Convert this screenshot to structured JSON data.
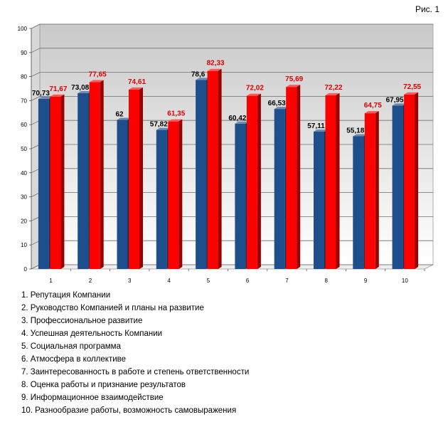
{
  "figure_label": "Рис. 1",
  "chart_data": {
    "type": "bar",
    "categories": [
      "1",
      "2",
      "3",
      "4",
      "5",
      "6",
      "7",
      "8",
      "9",
      "10"
    ],
    "series": [
      {
        "values": [
          70.73,
          73.08,
          62,
          57.82,
          78.6,
          60.42,
          66.53,
          57.11,
          55.18,
          67.95
        ],
        "labels": [
          "70,73",
          "73,08",
          "62",
          "57,82",
          "78,6",
          "60,42",
          "66,53",
          "57,11",
          "55,18",
          "67,95"
        ],
        "color": "#1f4e8c"
      },
      {
        "values": [
          71.67,
          77.65,
          74.61,
          61.35,
          82.33,
          72.02,
          75.69,
          72.22,
          64.75,
          72.55
        ],
        "labels": [
          "71,67",
          "77,65",
          "74,61",
          "61,35",
          "82,33",
          "72,02",
          "75,69",
          "72,22",
          "64,75",
          "72,55"
        ],
        "color": "#ff0000"
      }
    ],
    "y_ticks": [
      "0",
      "10",
      "20",
      "30",
      "40",
      "50",
      "60",
      "70",
      "80",
      "90",
      "100"
    ],
    "ylim": [
      0,
      100
    ],
    "grid": true,
    "legend": [
      "1. Репутация Компании",
      "2. Руководство Компанией и планы на развитие",
      "3. Профессиональное развитие",
      "4. Успешная деятельность Компании",
      "5. Социальная программа",
      "6. Атмосфера в коллективе",
      "7. Заинтересованность в работе и степень ответственности",
      "8. Оценка работы и признание результатов",
      "9. Информационное взаимодействие",
      "10. Разнообразие работы, возможность самовыражения"
    ],
    "legend_position": "bottom"
  }
}
